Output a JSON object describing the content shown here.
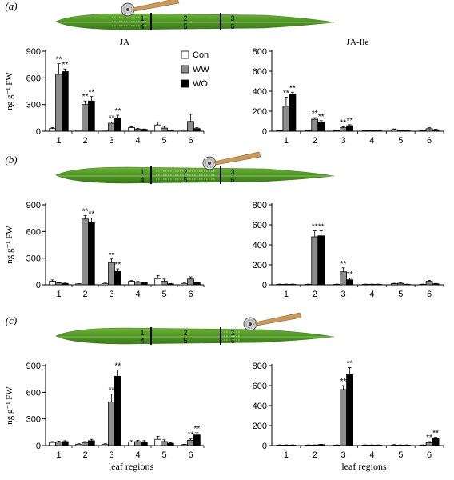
{
  "colors": {
    "Con": "#ffffff",
    "WW": "#8c8c8c",
    "WO": "#000000",
    "leaf": "#5a9e2c",
    "leaf_dark": "#3f7d1c"
  },
  "legend": [
    "Con",
    "WW",
    "WO"
  ],
  "rows": [
    {
      "letter": "(a)",
      "wound_region": 1,
      "leaf_labels_top": [
        "1",
        "2",
        "3"
      ],
      "leaf_labels_bottom": [
        "4",
        "5",
        "6"
      ]
    },
    {
      "letter": "(b)",
      "wound_region": 2,
      "leaf_labels_top": [
        "1",
        "2",
        "3"
      ],
      "leaf_labels_bottom": [
        "4",
        "5",
        "6"
      ]
    },
    {
      "letter": "(c)",
      "wound_region": 3,
      "leaf_labels_top": [
        "1",
        "2",
        "3"
      ],
      "leaf_labels_bottom": [
        "4",
        "5",
        "6"
      ]
    }
  ],
  "chart_data": [
    {
      "type": "bar",
      "panel": "a",
      "compound": "JA",
      "title": "JA",
      "ylabel": "ng g⁻¹ FW",
      "xlabel": "",
      "ylim": [
        0,
        900
      ],
      "yticks": [
        0,
        300,
        600,
        900
      ],
      "categories": [
        "1",
        "2",
        "3",
        "4",
        "5",
        "6"
      ],
      "series": [
        {
          "name": "Con",
          "values": [
            30,
            10,
            10,
            40,
            70,
            10
          ],
          "errors": [
            10,
            3,
            3,
            10,
            35,
            5
          ],
          "stars": [
            "",
            "",
            "",
            "",
            "",
            ""
          ]
        },
        {
          "name": "WW",
          "values": [
            640,
            300,
            90,
            25,
            35,
            110
          ],
          "errors": [
            120,
            40,
            15,
            8,
            20,
            80
          ],
          "stars": [
            "**",
            "**",
            "**",
            "",
            "",
            ""
          ]
        },
        {
          "name": "WO",
          "values": [
            670,
            340,
            150,
            20,
            10,
            30
          ],
          "errors": [
            30,
            50,
            30,
            5,
            5,
            10
          ],
          "stars": [
            "**",
            "**",
            "**",
            "",
            "",
            ""
          ]
        }
      ]
    },
    {
      "type": "bar",
      "panel": "a",
      "compound": "JA-Ile",
      "title": "JA-Ile",
      "ylabel": "",
      "xlabel": "",
      "ylim": [
        0,
        800
      ],
      "yticks": [
        0,
        200,
        400,
        600,
        800
      ],
      "categories": [
        "1",
        "2",
        "3",
        "4",
        "5",
        "6"
      ],
      "series": [
        {
          "name": "Con",
          "values": [
            5,
            5,
            5,
            5,
            15,
            5
          ],
          "errors": [
            3,
            3,
            3,
            2,
            8,
            3
          ],
          "stars": [
            "",
            "",
            "",
            "",
            "",
            ""
          ]
        },
        {
          "name": "WW",
          "values": [
            250,
            120,
            35,
            5,
            5,
            25
          ],
          "errors": [
            90,
            15,
            10,
            2,
            3,
            10
          ],
          "stars": [
            "**",
            "**",
            "**",
            "",
            "",
            ""
          ]
        },
        {
          "name": "WO",
          "values": [
            370,
            90,
            55,
            5,
            5,
            15
          ],
          "errors": [
            20,
            15,
            10,
            2,
            2,
            5
          ],
          "stars": [
            "**",
            "**",
            "**",
            "",
            "",
            ""
          ]
        }
      ]
    },
    {
      "type": "bar",
      "panel": "b",
      "compound": "JA",
      "title": "",
      "ylabel": "ng g⁻¹ FW",
      "xlabel": "",
      "ylim": [
        0,
        900
      ],
      "yticks": [
        0,
        300,
        600,
        900
      ],
      "categories": [
        "1",
        "2",
        "3",
        "4",
        "5",
        "6"
      ],
      "series": [
        {
          "name": "Con",
          "values": [
            40,
            10,
            15,
            40,
            70,
            15
          ],
          "errors": [
            15,
            3,
            5,
            8,
            35,
            5
          ],
          "stars": [
            "",
            "",
            "",
            "",
            "",
            ""
          ]
        },
        {
          "name": "WW",
          "values": [
            20,
            740,
            250,
            30,
            40,
            65
          ],
          "errors": [
            5,
            40,
            40,
            8,
            25,
            25
          ],
          "stars": [
            "",
            "**",
            "**",
            "",
            "",
            ""
          ]
        },
        {
          "name": "WO",
          "values": [
            15,
            700,
            150,
            25,
            10,
            25
          ],
          "errors": [
            5,
            50,
            30,
            5,
            5,
            8
          ],
          "stars": [
            "",
            "**",
            "**",
            "",
            "",
            ""
          ]
        }
      ]
    },
    {
      "type": "bar",
      "panel": "b",
      "compound": "JA-Ile",
      "title": "",
      "ylabel": "",
      "xlabel": "",
      "ylim": [
        0,
        800
      ],
      "yticks": [
        0,
        200,
        400,
        600,
        800
      ],
      "categories": [
        "1",
        "2",
        "3",
        "4",
        "5",
        "6"
      ],
      "series": [
        {
          "name": "Con",
          "values": [
            5,
            5,
            5,
            5,
            10,
            5
          ],
          "errors": [
            2,
            2,
            2,
            2,
            5,
            2
          ],
          "stars": [
            "",
            "",
            "",
            "",
            "",
            ""
          ]
        },
        {
          "name": "WW",
          "values": [
            5,
            480,
            130,
            5,
            15,
            35
          ],
          "errors": [
            2,
            60,
            40,
            2,
            8,
            10
          ],
          "stars": [
            "",
            "**",
            "**",
            "",
            "",
            ""
          ]
        },
        {
          "name": "WO",
          "values": [
            5,
            490,
            50,
            5,
            5,
            10
          ],
          "errors": [
            2,
            50,
            15,
            2,
            2,
            4
          ],
          "stars": [
            "",
            "**",
            "**",
            "",
            "",
            ""
          ]
        }
      ]
    },
    {
      "type": "bar",
      "panel": "c",
      "compound": "JA",
      "title": "",
      "ylabel": "ng g⁻¹ FW",
      "xlabel": "leaf regions",
      "ylim": [
        0,
        900
      ],
      "yticks": [
        0,
        300,
        600,
        900
      ],
      "categories": [
        "1",
        "2",
        "3",
        "4",
        "5",
        "6"
      ],
      "series": [
        {
          "name": "Con",
          "values": [
            35,
            15,
            15,
            40,
            70,
            10
          ],
          "errors": [
            10,
            5,
            5,
            15,
            35,
            5
          ],
          "stars": [
            "",
            "",
            "",
            "",
            "",
            ""
          ]
        },
        {
          "name": "WW",
          "values": [
            40,
            35,
            490,
            45,
            45,
            60
          ],
          "errors": [
            10,
            10,
            90,
            15,
            20,
            15
          ],
          "stars": [
            "",
            "",
            "**",
            "",
            "",
            "**"
          ]
        },
        {
          "name": "WO",
          "values": [
            45,
            55,
            780,
            40,
            25,
            120
          ],
          "errors": [
            10,
            15,
            70,
            15,
            8,
            25
          ],
          "stars": [
            "",
            "",
            "**",
            "",
            "",
            "**"
          ]
        }
      ]
    },
    {
      "type": "bar",
      "panel": "c",
      "compound": "JA-Ile",
      "title": "",
      "ylabel": "",
      "xlabel": "leaf regions",
      "ylim": [
        0,
        800
      ],
      "yticks": [
        0,
        200,
        400,
        600,
        800
      ],
      "categories": [
        "1",
        "2",
        "3",
        "4",
        "5",
        "6"
      ],
      "series": [
        {
          "name": "Con",
          "values": [
            5,
            5,
            5,
            5,
            5,
            5
          ],
          "errors": [
            2,
            2,
            2,
            2,
            5,
            2
          ],
          "stars": [
            "",
            "",
            "",
            "",
            "",
            ""
          ]
        },
        {
          "name": "WW",
          "values": [
            5,
            5,
            560,
            5,
            5,
            30
          ],
          "errors": [
            2,
            2,
            40,
            2,
            2,
            10
          ],
          "stars": [
            "",
            "",
            "**",
            "",
            "",
            "**"
          ]
        },
        {
          "name": "WO",
          "values": [
            5,
            10,
            710,
            5,
            5,
            70
          ],
          "errors": [
            2,
            3,
            70,
            2,
            2,
            15
          ],
          "stars": [
            "",
            "",
            "**",
            "",
            "",
            "**"
          ]
        }
      ]
    }
  ]
}
